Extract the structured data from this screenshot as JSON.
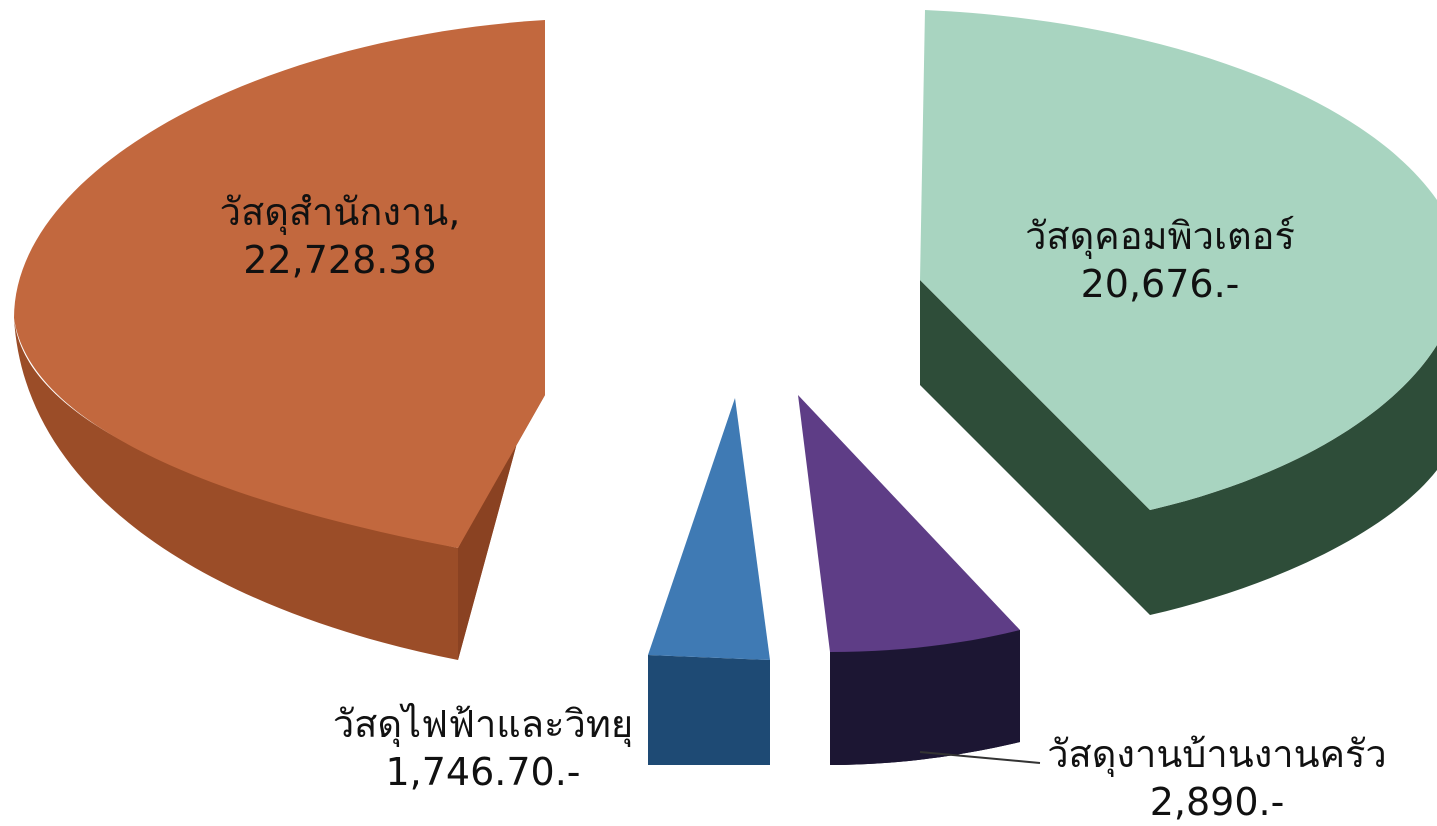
{
  "chart_data": {
    "type": "pie",
    "title": "",
    "slices": [
      {
        "label": "วัสดุสำนักงาน",
        "value": 22728.38,
        "value_text": "22,728.38",
        "color": "#c2683e",
        "side_color": "#9b4d28"
      },
      {
        "label": "วัสดุไฟฟ้าและวิทยุ",
        "value": 1746.7,
        "value_text": "1,746.70.-",
        "color": "#3f7ab4",
        "side_color": "#1e4a74"
      },
      {
        "label": "วัสดุงานบ้านงานครัว",
        "value": 2890,
        "value_text": "2,890.-",
        "color": "#5e3d86",
        "side_color": "#1c1633"
      },
      {
        "label": "วัสดุคอมพิวเตอร์",
        "value": 20676,
        "value_text": "20,676.-",
        "color": "#a8d4c0",
        "side_color": "#2e4d39"
      }
    ]
  },
  "labels": {
    "office_name": "วัสดุสำนักงาน,",
    "office_value": "22,728.38",
    "computer_name": "วัสดุคอมพิวเตอร์",
    "computer_value": "20,676.-",
    "electric_name": "วัสดุไฟฟ้าและวิทยุ",
    "electric_value": "1,746.70.-",
    "household_name": "วัสดุงานบ้านงานครัว",
    "household_value": "2,890.-"
  }
}
